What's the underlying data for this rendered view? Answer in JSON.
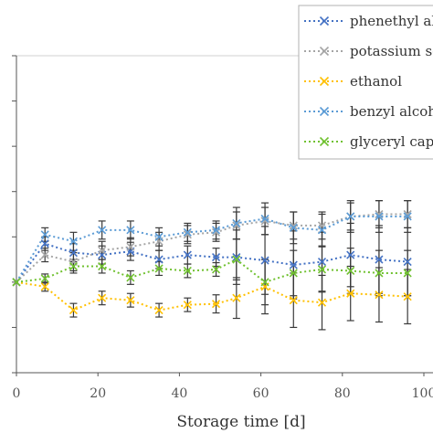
{
  "chart_data": {
    "type": "line",
    "title": "",
    "xlabel": "Storage time [d]",
    "ylabel": "",
    "xlim": [
      0,
      100
    ],
    "xticks": [
      "0",
      "20",
      "40",
      "60",
      "80",
      "100"
    ],
    "y_tick_count": 8,
    "ylim": [
      0,
      7
    ],
    "grid": false,
    "legend_position": "top-right",
    "x": [
      0,
      7,
      14,
      21,
      28,
      35,
      42,
      49,
      54,
      61,
      68,
      75,
      82,
      89,
      96
    ],
    "series": [
      {
        "name": "phenethyl alcohol",
        "color": "#4472C4",
        "values": [
          2.0,
          2.85,
          2.65,
          2.6,
          2.68,
          2.5,
          2.6,
          2.55,
          2.55,
          2.48,
          2.38,
          2.45,
          2.6,
          2.5,
          2.45
        ],
        "errors": [
          0.0,
          0.15,
          0.2,
          0.2,
          0.2,
          0.2,
          0.2,
          0.2,
          0.6,
          0.75,
          0.75,
          0.65,
          0.7,
          0.75,
          0.75
        ]
      },
      {
        "name": "potassium sorbate",
        "color": "#A5A5A5",
        "values": [
          2.0,
          2.6,
          2.45,
          2.7,
          2.78,
          2.9,
          3.05,
          3.1,
          3.25,
          3.35,
          3.25,
          3.25,
          3.45,
          3.5,
          3.5
        ],
        "errors": [
          0.0,
          0.15,
          0.2,
          0.2,
          0.2,
          0.2,
          0.2,
          0.2,
          0.3,
          0.3,
          0.3,
          0.3,
          0.3,
          0.3,
          0.3
        ]
      },
      {
        "name": "ethanol",
        "color": "#FFC000",
        "values": [
          2.0,
          1.9,
          1.38,
          1.65,
          1.6,
          1.38,
          1.5,
          1.52,
          1.65,
          1.9,
          1.6,
          1.55,
          1.75,
          1.72,
          1.68
        ],
        "errors": [
          0.0,
          0.1,
          0.15,
          0.15,
          0.15,
          0.15,
          0.15,
          0.2,
          0.45,
          0.6,
          0.6,
          0.6,
          0.6,
          0.6,
          0.6
        ]
      },
      {
        "name": "benzyl alcohol",
        "color": "#5B9BD5",
        "values": [
          2.0,
          3.05,
          2.9,
          3.15,
          3.15,
          3.0,
          3.1,
          3.15,
          3.3,
          3.4,
          3.2,
          3.15,
          3.45,
          3.45,
          3.45
        ],
        "errors": [
          0.0,
          0.15,
          0.2,
          0.2,
          0.2,
          0.2,
          0.2,
          0.2,
          0.35,
          0.35,
          0.35,
          0.35,
          0.35,
          0.35,
          0.35
        ]
      },
      {
        "name": "glyceryl caprylate",
        "color": "#70C130",
        "values": [
          2.0,
          2.08,
          2.35,
          2.35,
          2.1,
          2.3,
          2.25,
          2.28,
          2.5,
          2.0,
          2.2,
          2.28,
          2.25,
          2.2,
          2.2
        ],
        "errors": [
          0.0,
          0.1,
          0.15,
          0.15,
          0.15,
          0.15,
          0.15,
          0.15,
          0.45,
          0.5,
          0.5,
          0.5,
          0.5,
          0.5,
          0.5
        ]
      }
    ]
  }
}
